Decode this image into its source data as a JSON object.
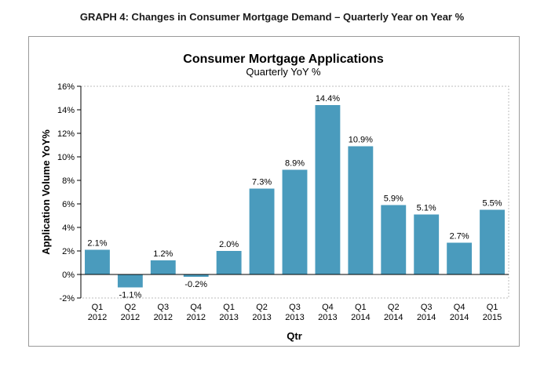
{
  "page_heading": "GRAPH 4: Changes in Consumer Mortgage Demand – Quarterly Year on Year %",
  "chart_data": {
    "type": "bar",
    "title": "Consumer Mortgage Applications",
    "subtitle": "Quarterly YoY %",
    "xlabel": "Qtr",
    "ylabel": "Application Volume YoY%",
    "categories": [
      [
        "Q1",
        "2012"
      ],
      [
        "Q2",
        "2012"
      ],
      [
        "Q3",
        "2012"
      ],
      [
        "Q4",
        "2012"
      ],
      [
        "Q1",
        "2013"
      ],
      [
        "Q2",
        "2013"
      ],
      [
        "Q3",
        "2013"
      ],
      [
        "Q4",
        "2013"
      ],
      [
        "Q1",
        "2014"
      ],
      [
        "Q2",
        "2014"
      ],
      [
        "Q3",
        "2014"
      ],
      [
        "Q4",
        "2014"
      ],
      [
        "Q1",
        "2015"
      ]
    ],
    "values": [
      2.1,
      -1.1,
      1.2,
      -0.2,
      2.0,
      7.3,
      8.9,
      14.4,
      10.9,
      5.9,
      5.1,
      2.7,
      5.5
    ],
    "data_labels": [
      "2.1%",
      "-1.1%",
      "1.2%",
      "-0.2%",
      "2.0%",
      "7.3%",
      "8.9%",
      "14.4%",
      "10.9%",
      "5.9%",
      "5.1%",
      "2.7%",
      "5.5%"
    ],
    "y_ticks": [
      -2,
      0,
      2,
      4,
      6,
      8,
      10,
      12,
      14,
      16
    ],
    "y_tick_labels": [
      "-2%",
      "0%",
      "2%",
      "4%",
      "6%",
      "8%",
      "10%",
      "12%",
      "14%",
      "16%"
    ],
    "ylim": [
      -2,
      16
    ],
    "grid": false,
    "bar_color": "#4a9bbd"
  }
}
